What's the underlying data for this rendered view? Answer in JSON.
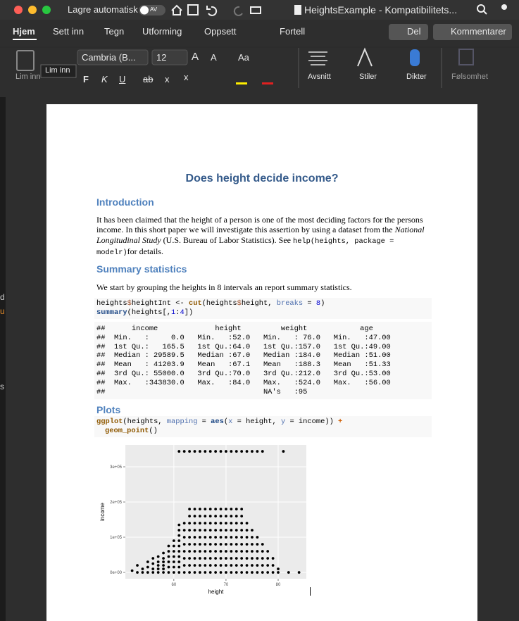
{
  "titlebar": {
    "autosave": "Lagre automatisk",
    "toggle": "AV",
    "document": "HeightsExample  -  Kompatibilitets..."
  },
  "tabs": [
    "Hjem",
    "Sett inn",
    "Tegn",
    "Utforming",
    "Oppsett"
  ],
  "tell": "Fortell",
  "share": "Del",
  "comments": "Kommentarer",
  "ribbon": {
    "paste": "Lim inn",
    "tooltip": "Lim inn",
    "font": "Cambria (B...",
    "size": "12",
    "grow": "A",
    "shrink": "A",
    "case": "Aa",
    "format": [
      "F",
      "K",
      "U",
      "ab",
      "x",
      "x"
    ],
    "groups": [
      "Avsnitt",
      "Stiler",
      "Dikter",
      "Følsomhet"
    ]
  },
  "background_fragments": [
    "d",
    "u",
    "s"
  ],
  "doc": {
    "title": "Does height decide income?",
    "h_intro": "Introduction",
    "intro": [
      "It has been claimed that the height of a person is one of the most deciding factors for the persons income. In this short paper we will investigate this assertion by using a dataset from the ",
      "National Longitudinal Study",
      " (U.S. Bureau of Labor Statistics). See ",
      "help(heights, package = modelr)",
      "for details."
    ],
    "h_summary": "Summary statistics",
    "summary_text": "We start by grouping the heights in 8 intervals an report summary statistics.",
    "code1": [
      [
        "heights",
        "$",
        "heightInt <- ",
        "cut",
        "(heights",
        "$",
        "height, ",
        "breaks",
        " = ",
        "8",
        ")"
      ],
      [
        "summary",
        "(heights[,",
        "1",
        ":",
        "4",
        "])"
      ]
    ],
    "output": [
      "##      income             height         weight            age",
      "##  Min.   :     0.0   Min.   :52.0   Min.   : 76.0   Min.   :47.00",
      "##  1st Qu.:   165.5   1st Qu.:64.0   1st Qu.:157.0   1st Qu.:49.00",
      "##  Median : 29589.5   Median :67.0   Median :184.0   Median :51.00",
      "##  Mean   : 41203.9   Mean   :67.1   Mean   :188.3   Mean   :51.33",
      "##  3rd Qu.: 55000.0   3rd Qu.:70.0   3rd Qu.:212.0   3rd Qu.:53.00",
      "##  Max.   :343830.0   Max.   :84.0   Max.   :524.0   Max.   :56.00",
      "##                                    NA's   :95"
    ],
    "h_plots": "Plots",
    "code2": [
      [
        "ggplot",
        "(heights, ",
        "mapping",
        " = ",
        "aes",
        "(",
        "x",
        " = height, ",
        "y",
        " = income)) ",
        "+"
      ],
      [
        "geom_point",
        "()"
      ]
    ]
  },
  "chart_data": {
    "type": "scatter",
    "x_label": "height",
    "y_label": "income",
    "color": "#000000",
    "background": "#ebebeb",
    "grid": true,
    "xlim": [
      50.7,
      85.4
    ],
    "ylim": [
      -18000,
      362000
    ],
    "xticks": [
      60,
      70,
      80
    ],
    "yticks": [
      {
        "value": 0,
        "label": "0e+00"
      },
      {
        "value": 100000,
        "label": "1e+05"
      },
      {
        "value": 200000,
        "label": "2e+05"
      },
      {
        "value": 300000,
        "label": "3e+05"
      }
    ],
    "x": [
      52,
      53,
      53,
      54,
      54,
      55,
      55,
      55,
      56,
      56,
      56,
      56,
      57,
      57,
      57,
      57,
      57,
      58,
      58,
      58,
      58,
      58,
      58,
      59,
      59,
      59,
      59,
      59,
      59,
      60,
      60,
      60,
      60,
      60,
      60,
      60,
      61,
      61,
      61,
      61,
      61,
      61,
      61,
      61,
      61,
      61,
      62,
      62,
      62,
      62,
      62,
      62,
      62,
      62,
      63,
      63,
      63,
      63,
      63,
      63,
      63,
      63,
      63,
      63,
      64,
      64,
      64,
      64,
      64,
      64,
      64,
      64,
      64,
      64,
      65,
      65,
      65,
      65,
      65,
      65,
      65,
      65,
      65,
      65,
      66,
      66,
      66,
      66,
      66,
      66,
      66,
      66,
      66,
      66,
      67,
      67,
      67,
      67,
      67,
      67,
      67,
      67,
      67,
      67,
      68,
      68,
      68,
      68,
      68,
      68,
      68,
      68,
      68,
      68,
      69,
      69,
      69,
      69,
      69,
      69,
      69,
      69,
      69,
      69,
      70,
      70,
      70,
      70,
      70,
      70,
      70,
      70,
      70,
      70,
      71,
      71,
      71,
      71,
      71,
      71,
      71,
      71,
      71,
      71,
      72,
      72,
      72,
      72,
      72,
      72,
      72,
      72,
      72,
      72,
      73,
      73,
      73,
      73,
      73,
      73,
      73,
      73,
      73,
      73,
      74,
      74,
      74,
      74,
      74,
      74,
      74,
      74,
      75,
      75,
      75,
      75,
      75,
      75,
      75,
      76,
      76,
      76,
      76,
      76,
      76,
      77,
      77,
      77,
      77,
      77,
      78,
      78,
      78,
      78,
      79,
      79,
      79,
      80,
      80,
      82,
      84,
      61,
      62,
      63,
      64,
      65,
      66,
      67,
      68,
      69,
      70,
      71,
      72,
      73,
      74,
      75,
      76,
      77,
      81
    ],
    "values": [
      5000,
      0,
      20000,
      0,
      10000,
      0,
      15000,
      30000,
      0,
      10000,
      25000,
      40000,
      0,
      10000,
      20000,
      30000,
      45000,
      0,
      10000,
      20000,
      30000,
      40000,
      55000,
      0,
      15000,
      30000,
      45000,
      60000,
      75000,
      0,
      15000,
      30000,
      45000,
      60000,
      75000,
      90000,
      0,
      15000,
      30000,
      45000,
      60000,
      75000,
      90000,
      105000,
      120000,
      135000,
      0,
      20000,
      40000,
      60000,
      80000,
      100000,
      120000,
      140000,
      0,
      20000,
      40000,
      60000,
      80000,
      100000,
      120000,
      140000,
      160000,
      180000,
      0,
      20000,
      40000,
      60000,
      80000,
      100000,
      120000,
      140000,
      160000,
      180000,
      0,
      20000,
      40000,
      60000,
      80000,
      100000,
      120000,
      140000,
      160000,
      180000,
      0,
      20000,
      40000,
      60000,
      80000,
      100000,
      120000,
      140000,
      160000,
      180000,
      0,
      20000,
      40000,
      60000,
      80000,
      100000,
      120000,
      140000,
      160000,
      180000,
      0,
      20000,
      40000,
      60000,
      80000,
      100000,
      120000,
      140000,
      160000,
      180000,
      0,
      20000,
      40000,
      60000,
      80000,
      100000,
      120000,
      140000,
      160000,
      180000,
      0,
      20000,
      40000,
      60000,
      80000,
      100000,
      120000,
      140000,
      160000,
      180000,
      0,
      20000,
      40000,
      60000,
      80000,
      100000,
      120000,
      140000,
      160000,
      180000,
      0,
      20000,
      40000,
      60000,
      80000,
      100000,
      120000,
      140000,
      160000,
      180000,
      0,
      20000,
      40000,
      60000,
      80000,
      100000,
      120000,
      140000,
      160000,
      180000,
      0,
      20000,
      40000,
      60000,
      80000,
      100000,
      120000,
      140000,
      0,
      20000,
      40000,
      60000,
      80000,
      100000,
      120000,
      0,
      20000,
      40000,
      60000,
      80000,
      100000,
      0,
      20000,
      40000,
      60000,
      80000,
      0,
      20000,
      40000,
      60000,
      0,
      20000,
      40000,
      0,
      10000,
      0,
      0,
      343830,
      343830,
      343830,
      343830,
      343830,
      343830,
      343830,
      343830,
      343830,
      343830,
      343830,
      343830,
      343830,
      343830,
      343830,
      343830,
      343830,
      343830
    ]
  }
}
